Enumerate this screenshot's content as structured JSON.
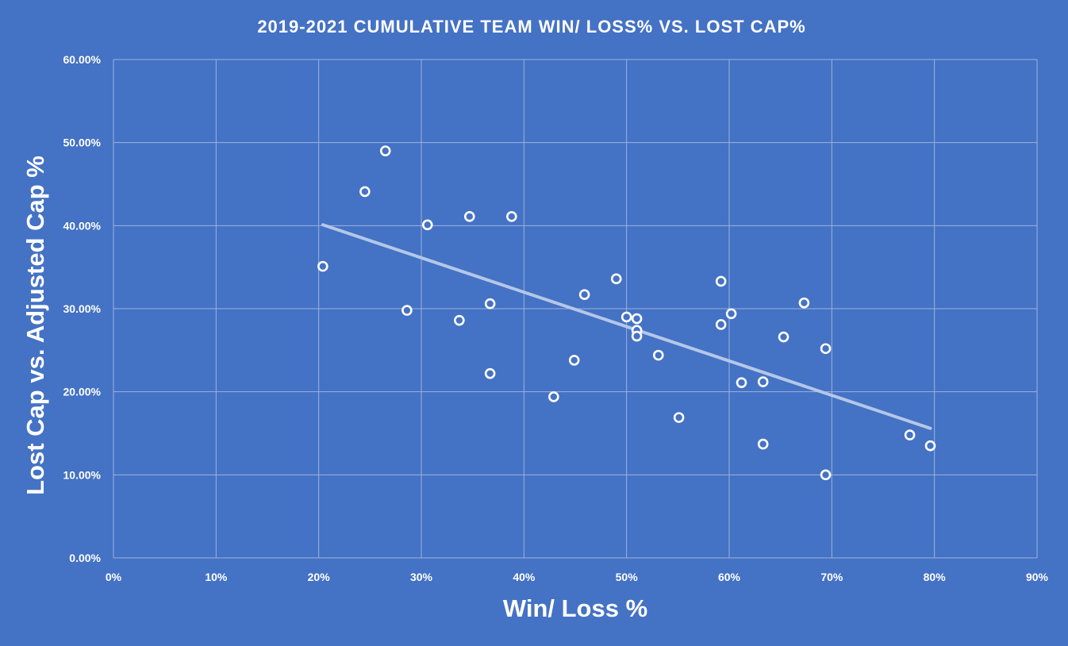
{
  "chart_data": {
    "type": "scatter",
    "title": "2019-2021 CUMULATIVE TEAM WIN/ LOSS% VS. LOST CAP%",
    "xlabel": "Win/ Loss %",
    "ylabel": "Lost Cap vs. Adjusted Cap %",
    "xlim": [
      0,
      0.9
    ],
    "ylim": [
      0,
      0.6
    ],
    "x_ticks": [
      0,
      0.1,
      0.2,
      0.3,
      0.4,
      0.5,
      0.6,
      0.7,
      0.8,
      0.9
    ],
    "x_tick_labels": [
      "0%",
      "10%",
      "20%",
      "30%",
      "40%",
      "50%",
      "60%",
      "70%",
      "80%",
      "90%"
    ],
    "y_ticks": [
      0,
      0.1,
      0.2,
      0.3,
      0.4,
      0.5,
      0.6
    ],
    "y_tick_labels": [
      "0.00%",
      "10.00%",
      "20.00%",
      "30.00%",
      "40.00%",
      "50.00%",
      "60.00%"
    ],
    "grid": true,
    "legend": "none",
    "colors": {
      "background": "#4472C4",
      "marker": "#FFFFFF",
      "trendline": "#B4C7E7",
      "grid": "#9DB2E0"
    },
    "trendline": {
      "x": [
        0.204,
        0.796
      ],
      "y": [
        0.401,
        0.156
      ]
    },
    "points": [
      {
        "x": 0.204,
        "y": 0.351
      },
      {
        "x": 0.245,
        "y": 0.441
      },
      {
        "x": 0.265,
        "y": 0.49
      },
      {
        "x": 0.286,
        "y": 0.298
      },
      {
        "x": 0.306,
        "y": 0.401
      },
      {
        "x": 0.337,
        "y": 0.286
      },
      {
        "x": 0.347,
        "y": 0.411
      },
      {
        "x": 0.367,
        "y": 0.306
      },
      {
        "x": 0.367,
        "y": 0.222
      },
      {
        "x": 0.388,
        "y": 0.411
      },
      {
        "x": 0.429,
        "y": 0.194
      },
      {
        "x": 0.449,
        "y": 0.238
      },
      {
        "x": 0.459,
        "y": 0.317
      },
      {
        "x": 0.49,
        "y": 0.336
      },
      {
        "x": 0.5,
        "y": 0.29
      },
      {
        "x": 0.51,
        "y": 0.288
      },
      {
        "x": 0.51,
        "y": 0.274
      },
      {
        "x": 0.51,
        "y": 0.267
      },
      {
        "x": 0.531,
        "y": 0.244
      },
      {
        "x": 0.551,
        "y": 0.169
      },
      {
        "x": 0.592,
        "y": 0.333
      },
      {
        "x": 0.592,
        "y": 0.281
      },
      {
        "x": 0.602,
        "y": 0.294
      },
      {
        "x": 0.612,
        "y": 0.211
      },
      {
        "x": 0.633,
        "y": 0.212
      },
      {
        "x": 0.633,
        "y": 0.137
      },
      {
        "x": 0.653,
        "y": 0.266
      },
      {
        "x": 0.673,
        "y": 0.307
      },
      {
        "x": 0.694,
        "y": 0.252
      },
      {
        "x": 0.694,
        "y": 0.1
      },
      {
        "x": 0.776,
        "y": 0.148
      },
      {
        "x": 0.796,
        "y": 0.135
      }
    ]
  }
}
